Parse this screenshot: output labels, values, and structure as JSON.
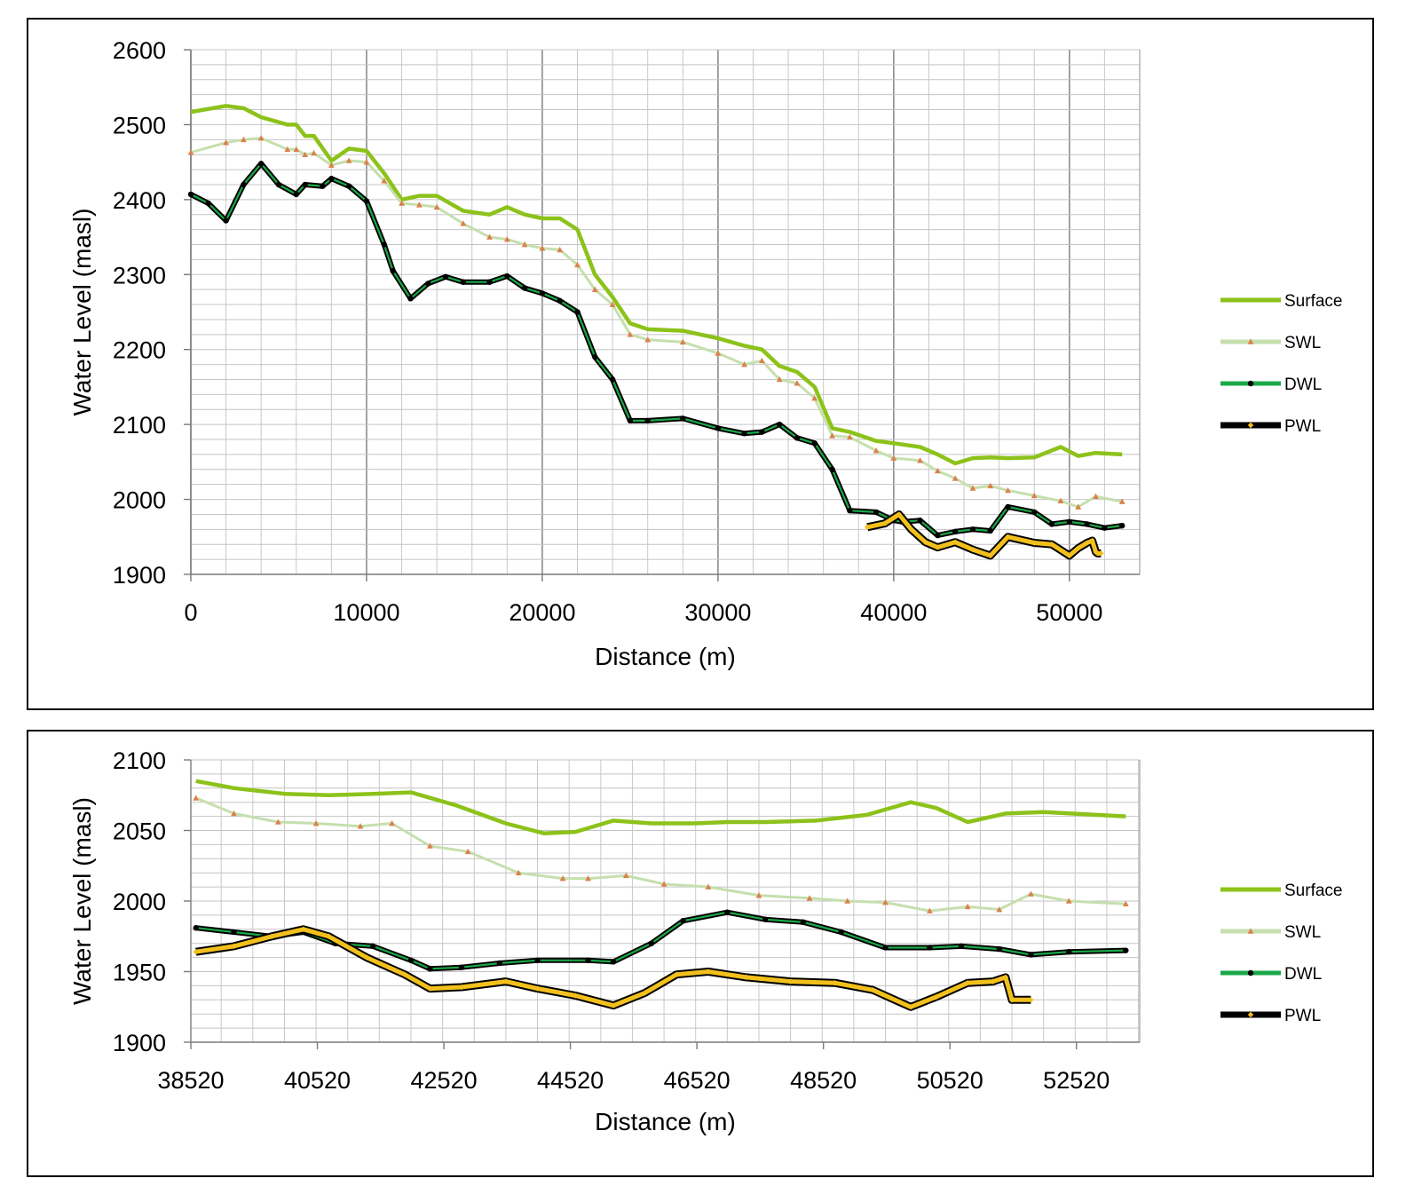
{
  "chart_data": [
    {
      "type": "line",
      "xlabel": "Distance (m)",
      "ylabel": "Water Level (masl)",
      "xlim": [
        0,
        54000
      ],
      "ylim": [
        1900,
        2600
      ],
      "xticks": [
        "0",
        "10000",
        "20000",
        "30000",
        "40000",
        "50000"
      ],
      "yticks": [
        "1900",
        "2000",
        "2100",
        "2200",
        "2300",
        "2400",
        "2500",
        "2600"
      ],
      "grid": true,
      "legend_position": "right",
      "series": [
        {
          "name": "Surface",
          "color": "#8cc21a",
          "marker": "none",
          "x": [
            0,
            2000,
            3000,
            4000,
            5500,
            6000,
            6500,
            7000,
            8000,
            9000,
            10000,
            11000,
            12000,
            13000,
            14000,
            15500,
            17000,
            18000,
            19000,
            20000,
            21000,
            22000,
            23000,
            24000,
            25000,
            26000,
            28000,
            30000,
            31500,
            32500,
            33500,
            34500,
            35500,
            36500,
            37500,
            39000,
            40000,
            41500,
            42500,
            43500,
            44500,
            45500,
            46500,
            48000,
            49500,
            50500,
            51500,
            53000
          ],
          "y": [
            2517,
            2525,
            2522,
            2510,
            2500,
            2500,
            2485,
            2485,
            2452,
            2468,
            2465,
            2435,
            2400,
            2405,
            2405,
            2385,
            2380,
            2390,
            2380,
            2375,
            2375,
            2360,
            2300,
            2270,
            2235,
            2227,
            2225,
            2215,
            2205,
            2200,
            2178,
            2170,
            2150,
            2095,
            2090,
            2078,
            2075,
            2070,
            2060,
            2048,
            2055,
            2056,
            2055,
            2056,
            2070,
            2058,
            2062,
            2060
          ]
        },
        {
          "name": "SWL",
          "color": "#d9824d",
          "marker": "triangle",
          "x": [
            0,
            2000,
            3000,
            4000,
            5500,
            6000,
            6500,
            7000,
            8000,
            9000,
            10000,
            11000,
            12000,
            13000,
            14000,
            15500,
            17000,
            18000,
            19000,
            20000,
            21000,
            22000,
            23000,
            24000,
            25000,
            26000,
            28000,
            30000,
            31500,
            32500,
            33500,
            34500,
            35500,
            36500,
            37500,
            39000,
            40000,
            41500,
            42500,
            43500,
            44500,
            45500,
            46500,
            48000,
            49500,
            50500,
            51500,
            53000
          ],
          "y": [
            2463,
            2476,
            2480,
            2482,
            2467,
            2467,
            2460,
            2462,
            2446,
            2452,
            2450,
            2425,
            2395,
            2393,
            2390,
            2368,
            2350,
            2347,
            2340,
            2335,
            2333,
            2313,
            2280,
            2260,
            2220,
            2213,
            2210,
            2195,
            2180,
            2185,
            2160,
            2155,
            2135,
            2085,
            2083,
            2065,
            2055,
            2052,
            2038,
            2028,
            2015,
            2018,
            2012,
            2005,
            1998,
            1990,
            2004,
            1997
          ]
        },
        {
          "name": "DWL",
          "color": "#1aa848",
          "marker": "circle",
          "x": [
            0,
            1000,
            2000,
            3000,
            4000,
            5000,
            6000,
            6500,
            7500,
            8000,
            9000,
            10000,
            11000,
            11500,
            12500,
            13500,
            14500,
            15500,
            17000,
            18000,
            19000,
            20000,
            21000,
            22000,
            23000,
            24000,
            25000,
            26000,
            28000,
            30000,
            31500,
            32500,
            33500,
            34500,
            35500,
            36500,
            37500,
            39000,
            40000,
            40500,
            41500,
            42500,
            43500,
            44500,
            45500,
            46500,
            48000,
            49000,
            50000,
            51000,
            52000,
            53000
          ],
          "y": [
            2407,
            2395,
            2372,
            2420,
            2448,
            2420,
            2407,
            2420,
            2418,
            2428,
            2418,
            2398,
            2340,
            2305,
            2268,
            2288,
            2297,
            2290,
            2290,
            2298,
            2282,
            2275,
            2265,
            2250,
            2190,
            2160,
            2105,
            2105,
            2108,
            2095,
            2088,
            2090,
            2100,
            2082,
            2075,
            2040,
            1985,
            1983,
            1972,
            1970,
            1972,
            1952,
            1957,
            1960,
            1958,
            1990,
            1983,
            1967,
            1970,
            1967,
            1962,
            1965
          ]
        },
        {
          "name": "PWL",
          "color": "#f2c01c",
          "marker": "diamond",
          "x": [
            38500,
            39500,
            40300,
            41000,
            41800,
            42500,
            43500,
            44500,
            45500,
            46500,
            48000,
            49000,
            50000,
            50500,
            51000,
            51300,
            51500,
            51600,
            51800
          ],
          "y": [
            1963,
            1968,
            1980,
            1960,
            1943,
            1936,
            1943,
            1933,
            1925,
            1950,
            1942,
            1940,
            1925,
            1935,
            1942,
            1945,
            1930,
            1928,
            1928
          ]
        }
      ],
      "legend": [
        "Surface",
        "SWL",
        "DWL",
        "PWL"
      ]
    },
    {
      "type": "line",
      "xlabel": "Distance (m)",
      "ylabel": "Water Level (masl)",
      "xlim": [
        38520,
        53520
      ],
      "ylim": [
        1900,
        2100
      ],
      "xticks": [
        "38520",
        "40520",
        "42520",
        "44520",
        "46520",
        "48520",
        "50520",
        "52520"
      ],
      "yticks": [
        "1900",
        "1950",
        "2000",
        "2050",
        "2100"
      ],
      "grid": true,
      "legend_position": "right",
      "series": [
        {
          "name": "Surface",
          "color": "#8cc21a",
          "marker": "none",
          "x": [
            38600,
            39200,
            40000,
            40700,
            41400,
            42000,
            42700,
            43500,
            44100,
            44600,
            45200,
            45800,
            46500,
            47000,
            47600,
            48400,
            49200,
            49900,
            50300,
            50800,
            51400,
            52000,
            53300
          ],
          "y": [
            2085,
            2080,
            2076,
            2075,
            2076,
            2077,
            2068,
            2055,
            2048,
            2049,
            2057,
            2055,
            2055,
            2056,
            2056,
            2057,
            2061,
            2070,
            2066,
            2056,
            2062,
            2063,
            2060
          ]
        },
        {
          "name": "SWL",
          "color": "#d9824d",
          "marker": "triangle",
          "x": [
            38600,
            39200,
            39900,
            40500,
            41200,
            41700,
            42300,
            42900,
            43700,
            44400,
            44800,
            45400,
            46000,
            46700,
            47500,
            48300,
            48900,
            49500,
            50200,
            50800,
            51300,
            51800,
            52400,
            53300
          ],
          "y": [
            2073,
            2062,
            2056,
            2055,
            2053,
            2055,
            2039,
            2035,
            2020,
            2016,
            2016,
            2018,
            2012,
            2010,
            2004,
            2002,
            2000,
            1999,
            1993,
            1996,
            1994,
            2005,
            2000,
            1998
          ]
        },
        {
          "name": "DWL",
          "color": "#1aa848",
          "marker": "circle",
          "x": [
            38600,
            39200,
            39800,
            40300,
            40800,
            41400,
            42000,
            42300,
            42800,
            43400,
            44000,
            44800,
            45200,
            45800,
            46300,
            47000,
            47600,
            48200,
            48800,
            49500,
            50200,
            50700,
            51300,
            51800,
            52400,
            53300
          ],
          "y": [
            1981,
            1978,
            1975,
            1978,
            1970,
            1968,
            1958,
            1952,
            1953,
            1956,
            1958,
            1958,
            1957,
            1970,
            1986,
            1992,
            1987,
            1985,
            1978,
            1967,
            1967,
            1968,
            1966,
            1962,
            1964,
            1965
          ]
        },
        {
          "name": "PWL",
          "color": "#f2c01c",
          "marker": "diamond",
          "x": [
            38600,
            39200,
            39800,
            40300,
            40700,
            41300,
            41900,
            42300,
            42800,
            43500,
            44000,
            44600,
            45200,
            45700,
            46200,
            46700,
            47300,
            48000,
            48700,
            49300,
            49900,
            50300,
            50800,
            51200,
            51400,
            51500,
            51800
          ],
          "y": [
            1964,
            1968,
            1975,
            1980,
            1975,
            1960,
            1948,
            1938,
            1939,
            1943,
            1938,
            1933,
            1926,
            1935,
            1948,
            1950,
            1946,
            1943,
            1942,
            1937,
            1925,
            1932,
            1942,
            1943,
            1946,
            1930,
            1930
          ]
        }
      ],
      "legend": [
        "Surface",
        "SWL",
        "DWL",
        "PWL"
      ]
    }
  ]
}
